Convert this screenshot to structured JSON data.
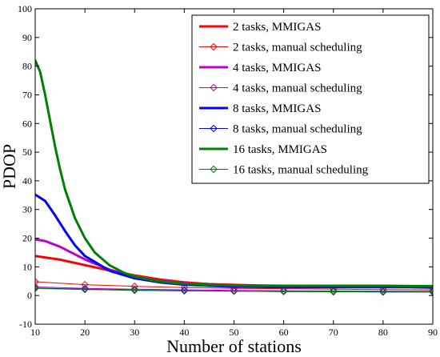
{
  "chart_data": {
    "type": "line",
    "xlabel": "Number of stations",
    "ylabel": "PDOP",
    "xlim": [
      10,
      90
    ],
    "ylim": [
      -10,
      100
    ],
    "xticks": [
      10,
      20,
      30,
      40,
      50,
      60,
      70,
      80,
      90
    ],
    "yticks": [
      -10,
      0,
      10,
      20,
      30,
      40,
      50,
      60,
      70,
      80,
      90,
      100
    ],
    "legend_position": "top-right",
    "grid": false,
    "series": [
      {
        "name": "2 tasks, MMIGAS",
        "color": "#ff0000",
        "line": "thick",
        "marker": "none",
        "x": [
          10,
          15,
          20,
          25,
          30,
          35,
          40,
          45,
          50,
          55,
          60,
          65,
          70,
          75,
          80,
          85,
          90
        ],
        "y": [
          13.8,
          12.5,
          10.6,
          8.7,
          7.0,
          5.6,
          4.6,
          4.0,
          3.7,
          3.5,
          3.4,
          3.3,
          3.3,
          3.3,
          3.3,
          3.3,
          3.2
        ]
      },
      {
        "name": "2 tasks, manual scheduling",
        "color": "#ff0000",
        "line": "thin",
        "marker": "diamond",
        "x": [
          10,
          20,
          30,
          40,
          50,
          60,
          70,
          80,
          90
        ],
        "y": [
          4.8,
          3.8,
          3.2,
          2.8,
          2.5,
          2.4,
          2.2,
          2.1,
          2.0
        ]
      },
      {
        "name": "4 tasks, MMIGAS",
        "color": "#c000c0",
        "line": "thick",
        "marker": "none",
        "x": [
          10,
          12,
          15,
          20,
          25,
          30,
          35,
          40,
          45,
          50,
          55,
          60,
          65,
          70,
          75,
          80,
          85,
          90
        ],
        "y": [
          19.6,
          19.0,
          17.0,
          12.6,
          9.0,
          6.6,
          5.1,
          4.3,
          3.8,
          3.5,
          3.3,
          3.2,
          3.1,
          3.1,
          3.0,
          3.0,
          3.0,
          2.9
        ]
      },
      {
        "name": "4 tasks, manual scheduling",
        "color": "#c000c0",
        "line": "thin",
        "marker": "diamond",
        "x": [
          10,
          20,
          30,
          40,
          50,
          60,
          70,
          80,
          90
        ],
        "y": [
          3.0,
          2.5,
          2.2,
          2.0,
          1.8,
          1.7,
          1.6,
          1.5,
          1.5
        ]
      },
      {
        "name": "8 tasks, MMIGAS",
        "color": "#0000ff",
        "line": "thick",
        "marker": "none",
        "x": [
          10,
          12,
          14,
          16,
          18,
          20,
          25,
          30,
          35,
          40,
          45,
          50,
          55,
          60,
          65,
          70,
          75,
          80,
          85,
          90
        ],
        "y": [
          35.2,
          33.0,
          28.0,
          22.5,
          17.5,
          13.8,
          8.6,
          6.0,
          4.6,
          3.8,
          3.4,
          3.1,
          3.0,
          2.9,
          2.9,
          2.9,
          2.9,
          2.9,
          2.9,
          2.8
        ]
      },
      {
        "name": "8 tasks, manual scheduling",
        "color": "#0000ff",
        "line": "thin",
        "marker": "diamond",
        "x": [
          10,
          20,
          30,
          40,
          50,
          60,
          70,
          80,
          90
        ],
        "y": [
          2.6,
          2.2,
          1.9,
          1.7,
          1.5,
          1.4,
          1.3,
          1.3,
          1.2
        ]
      },
      {
        "name": "16 tasks, MMIGAS",
        "color": "#008000",
        "line": "thick",
        "marker": "none",
        "x": [
          10,
          11,
          12,
          13,
          14,
          15,
          16,
          18,
          20,
          22,
          25,
          28,
          30,
          35,
          40,
          45,
          50,
          55,
          60,
          65,
          70,
          75,
          80,
          85,
          90
        ],
        "y": [
          82.0,
          78.0,
          70.0,
          61.0,
          52.0,
          44.0,
          37.0,
          27.0,
          20.0,
          15.0,
          10.5,
          7.8,
          6.6,
          4.9,
          4.1,
          3.7,
          3.5,
          3.4,
          3.4,
          3.4,
          3.4,
          3.4,
          3.4,
          3.3,
          3.3
        ]
      },
      {
        "name": "16 tasks, manual scheduling",
        "color": "#008000",
        "line": "thin",
        "marker": "diamond",
        "x": [
          10,
          20,
          30,
          40,
          50,
          60,
          70,
          80,
          90
        ],
        "y": [
          2.5,
          2.1,
          1.8,
          1.6,
          1.5,
          1.4,
          1.3,
          1.2,
          1.2
        ]
      }
    ]
  }
}
